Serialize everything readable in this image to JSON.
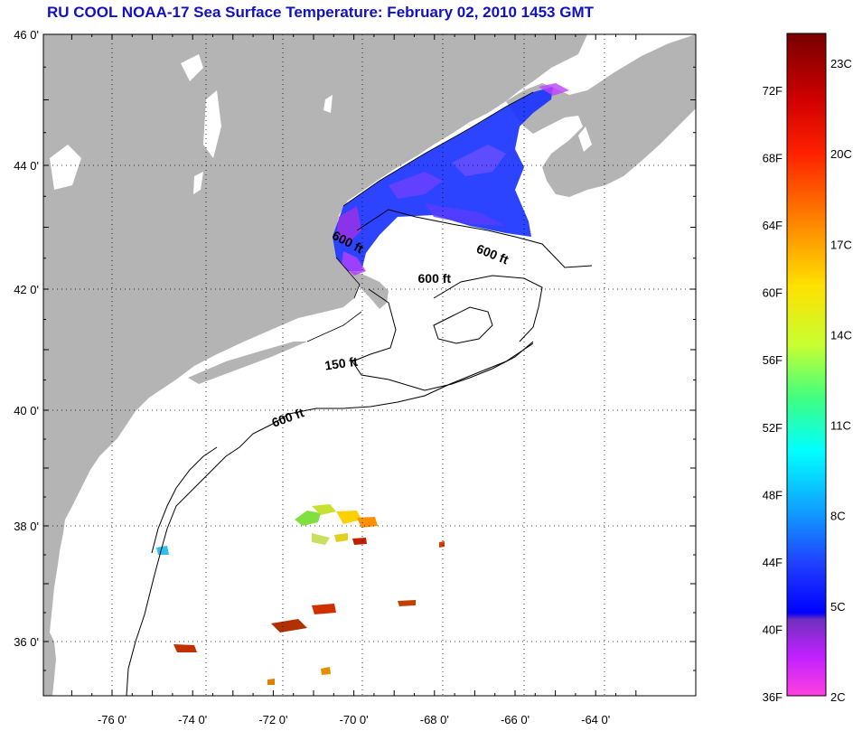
{
  "title": "RU COOL  NOAA-17  Sea Surface Temperature:  February 02, 2010 1453 GMT",
  "colors": {
    "land": "#b4b4b4",
    "title": "#1010c8",
    "gridline": "#000000"
  },
  "map": {
    "lon_ticks": [
      {
        "value": -76,
        "label": "-76 0'"
      },
      {
        "value": -74,
        "label": "-74 0'"
      },
      {
        "value": -72,
        "label": "-72 0'"
      },
      {
        "value": -70,
        "label": "-70 0'"
      },
      {
        "value": -68,
        "label": "-68 0'"
      },
      {
        "value": -66,
        "label": "-66 0'"
      },
      {
        "value": -64,
        "label": "-64 0'"
      }
    ],
    "lat_ticks": [
      {
        "value": 46,
        "label": "46 0'"
      },
      {
        "value": 44,
        "label": "44 0'"
      },
      {
        "value": 42,
        "label": "42 0'"
      },
      {
        "value": 40,
        "label": "40 0'"
      },
      {
        "value": 38,
        "label": "38 0'"
      },
      {
        "value": 36,
        "label": "36 0'"
      }
    ],
    "depth_labels": [
      {
        "text": "600 ft",
        "lon": -70.2,
        "lat": 42.7,
        "rotate": 28
      },
      {
        "text": "600 ft",
        "lon": -66.6,
        "lat": 42.5,
        "rotate": 22
      },
      {
        "text": "600 ft",
        "lon": -68.0,
        "lat": 42.1,
        "rotate": 0
      },
      {
        "text": "150 ft",
        "lon": -70.3,
        "lat": 40.7,
        "rotate": -8
      },
      {
        "text": "600 ft",
        "lon": -71.6,
        "lat": 39.8,
        "rotate": -20
      }
    ]
  },
  "colorbar": {
    "fahrenheit_labels": [
      "72F",
      "68F",
      "64F",
      "60F",
      "56F",
      "52F",
      "48F",
      "44F",
      "40F",
      "36F"
    ],
    "celsius_labels": [
      "23C",
      "20C",
      "17C",
      "14C",
      "11C",
      "8C",
      "5C",
      "2C"
    ]
  }
}
